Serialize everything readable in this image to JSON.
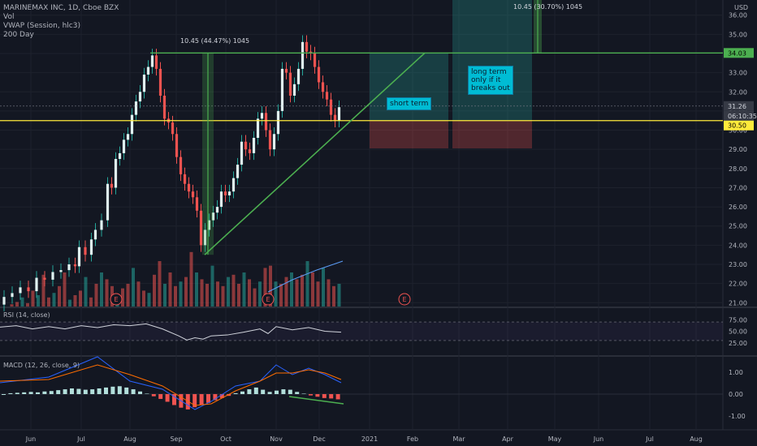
{
  "header": {
    "symbol": "MARINEMAX INC, 1D, Cboe BZX",
    "indicators": [
      "Vol",
      "VWAP (Session, hlc3)",
      "200 Day"
    ],
    "currency": "USD"
  },
  "panes": {
    "rsi_label": "RSI (14, close)",
    "macd_label": "MACD (12, 26, close, 9)"
  },
  "annotations": {
    "measure_1": "10.45 (44.47%) 1045",
    "measure_2": "10.45 (30.70%) 1045",
    "short_term": "short term",
    "long_term": "long term\nonly if it\nbreaks out",
    "earnings_marker": "E"
  },
  "price_labels": {
    "resistance": "34.03",
    "last": "31.26",
    "countdown": "06:10:35",
    "support": "30.50"
  },
  "colors": {
    "background": "#131722",
    "up": "#26a69a",
    "down": "#ef5350",
    "resistance_line": "#4caf50",
    "support_line": "#ffeb3b",
    "note_box": "#00bcd4"
  },
  "chart_data": {
    "type": "candlestick",
    "price_axis": {
      "ticks": [
        "36.00",
        "35.00",
        "34.00",
        "33.00",
        "32.00",
        "31.00",
        "30.00",
        "29.00",
        "28.00",
        "27.00",
        "26.00",
        "25.00",
        "24.00",
        "23.00",
        "22.00",
        "21.00"
      ],
      "range": [
        20.8,
        36.2
      ]
    },
    "rsi_axis": {
      "ticks": [
        "75.00",
        "50.00",
        "25.00"
      ]
    },
    "macd_axis": {
      "ticks": [
        "1.00",
        "0.00",
        "-1.00"
      ]
    },
    "time_axis": [
      "Jun",
      "Jul",
      "Aug",
      "Sep",
      "Oct",
      "Nov",
      "Dec",
      "2021",
      "Feb",
      "Mar",
      "Apr",
      "May",
      "Jun",
      "Jul",
      "Aug"
    ],
    "levels": {
      "resistance": 34.03,
      "support": 30.5,
      "last": 31.26
    },
    "price_path": [
      [
        0,
        20.9
      ],
      [
        10,
        21.3
      ],
      [
        20,
        21.5
      ],
      [
        30,
        21.8
      ],
      [
        40,
        21.6
      ],
      [
        50,
        22.3
      ],
      [
        60,
        22.2
      ],
      [
        70,
        22.6
      ],
      [
        80,
        22.7
      ],
      [
        90,
        23.0
      ],
      [
        95,
        22.9
      ],
      [
        100,
        23.9
      ],
      [
        110,
        23.5
      ],
      [
        115,
        24.3
      ],
      [
        120,
        24.8
      ],
      [
        130,
        25.3
      ],
      [
        135,
        27.2
      ],
      [
        140,
        27.0
      ],
      [
        145,
        28.5
      ],
      [
        150,
        28.8
      ],
      [
        155,
        29.5
      ],
      [
        160,
        29.8
      ],
      [
        165,
        30.8
      ],
      [
        170,
        31.5
      ],
      [
        175,
        32.0
      ],
      [
        180,
        32.9
      ],
      [
        185,
        33.3
      ],
      [
        190,
        33.9
      ],
      [
        195,
        33.2
      ],
      [
        200,
        31.8
      ],
      [
        205,
        30.6
      ],
      [
        210,
        30.4
      ],
      [
        215,
        29.8
      ],
      [
        220,
        28.6
      ],
      [
        225,
        27.7
      ],
      [
        230,
        27.2
      ],
      [
        235,
        26.8
      ],
      [
        240,
        26.5
      ],
      [
        245,
        25.8
      ],
      [
        250,
        24.0
      ],
      [
        255,
        24.8
      ],
      [
        260,
        25.3
      ],
      [
        265,
        25.7
      ],
      [
        270,
        26.0
      ],
      [
        275,
        26.8
      ],
      [
        280,
        26.6
      ],
      [
        285,
        26.8
      ],
      [
        290,
        27.5
      ],
      [
        295,
        28.2
      ],
      [
        300,
        29.4
      ],
      [
        305,
        29.0
      ],
      [
        310,
        28.8
      ],
      [
        315,
        29.6
      ],
      [
        320,
        30.6
      ],
      [
        325,
        30.9
      ],
      [
        330,
        30.0
      ],
      [
        335,
        29.0
      ],
      [
        340,
        29.8
      ],
      [
        345,
        31.0
      ],
      [
        350,
        33.2
      ],
      [
        355,
        33.0
      ],
      [
        360,
        31.8
      ],
      [
        365,
        32.4
      ],
      [
        370,
        33.2
      ],
      [
        375,
        34.6
      ],
      [
        380,
        34.1
      ],
      [
        385,
        34.0
      ],
      [
        390,
        33.3
      ],
      [
        395,
        32.5
      ],
      [
        400,
        32.0
      ],
      [
        405,
        31.6
      ],
      [
        410,
        30.8
      ],
      [
        415,
        30.5
      ],
      [
        420,
        31.2
      ]
    ],
    "volume_path": [
      0,
      2,
      4,
      8,
      3,
      14,
      10,
      28,
      8,
      12,
      18,
      30,
      6,
      10,
      14,
      26,
      8,
      20,
      30,
      24,
      18,
      10,
      16,
      20,
      34,
      22,
      14,
      12,
      28,
      40,
      20,
      30,
      18,
      22,
      26,
      48,
      30,
      24,
      20,
      36,
      22,
      18,
      26,
      28,
      20,
      30,
      24,
      16,
      22,
      34,
      36,
      22,
      20,
      26,
      30,
      24,
      28,
      40,
      30,
      22,
      34,
      24,
      18,
      20
    ],
    "rsi_path": [
      [
        0,
        59
      ],
      [
        20,
        62
      ],
      [
        40,
        55
      ],
      [
        60,
        60
      ],
      [
        80,
        55
      ],
      [
        100,
        62
      ],
      [
        120,
        58
      ],
      [
        140,
        64
      ],
      [
        160,
        62
      ],
      [
        180,
        66
      ],
      [
        200,
        55
      ],
      [
        220,
        40
      ],
      [
        230,
        31
      ],
      [
        240,
        36
      ],
      [
        250,
        33
      ],
      [
        260,
        40
      ],
      [
        280,
        42
      ],
      [
        300,
        48
      ],
      [
        320,
        55
      ],
      [
        330,
        45
      ],
      [
        340,
        60
      ],
      [
        360,
        53
      ],
      [
        380,
        58
      ],
      [
        400,
        50
      ],
      [
        420,
        48
      ]
    ],
    "macd_hist": [
      0,
      0.04,
      0.06,
      0.08,
      0.1,
      0.08,
      0.12,
      0.14,
      0.18,
      0.22,
      0.26,
      0.24,
      0.2,
      0.22,
      0.26,
      0.3,
      0.34,
      0.36,
      0.3,
      0.22,
      0.12,
      0.02,
      -0.1,
      -0.22,
      -0.35,
      -0.5,
      -0.62,
      -0.7,
      -0.6,
      -0.5,
      -0.4,
      -0.28,
      -0.18,
      -0.08,
      0.04,
      0.12,
      0.22,
      0.3,
      0.2,
      0.1,
      0.16,
      0.22,
      0.2,
      0.1,
      0.02,
      -0.06,
      -0.12,
      -0.18,
      -0.2,
      -0.24
    ]
  }
}
